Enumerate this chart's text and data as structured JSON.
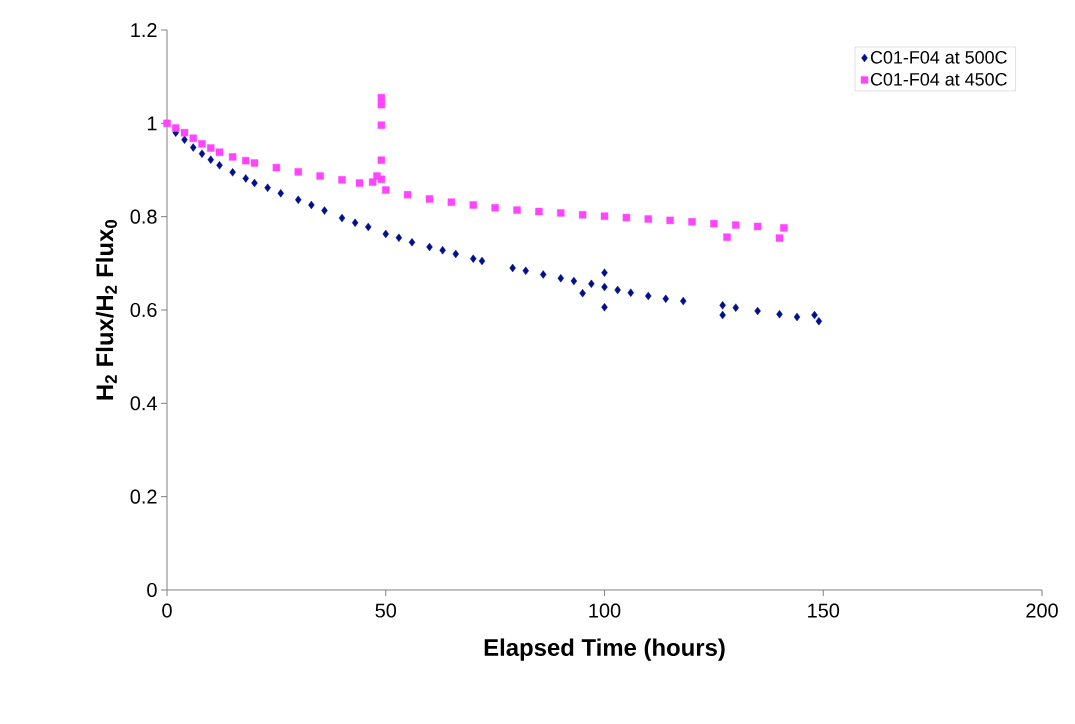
{
  "chart_data": {
    "type": "scatter",
    "xlabel": "Elapsed Time (hours)",
    "ylabel": "H$_{2}$ Flux/H$_{2}$ Flux$_{0}$",
    "xlim": [
      0,
      200
    ],
    "ylim": [
      0,
      1.2
    ],
    "xticks": [
      0,
      50,
      100,
      150,
      200
    ],
    "yticks": [
      0,
      {
        "value": 0.2,
        "label": "0.2"
      },
      {
        "value": 0.4,
        "label": "0.4"
      },
      {
        "value": 0.6,
        "label": "0.6"
      },
      {
        "value": 0.8,
        "label": "0.8"
      },
      1,
      {
        "value": 1.2,
        "label": "1.2"
      }
    ],
    "grid": false,
    "legend": "top right",
    "series": [
      {
        "name": "C01-F04 at 500C",
        "color": "#000f8c",
        "marker": "diamond",
        "x": [
          2,
          4,
          6,
          8,
          10,
          12,
          15,
          18,
          20,
          23,
          26,
          30,
          33,
          36,
          40,
          43,
          46,
          50,
          53,
          56,
          60,
          63,
          66,
          70,
          72,
          79,
          82,
          86,
          90,
          93,
          95,
          97,
          100,
          100,
          100,
          103,
          106,
          110,
          114,
          118,
          127,
          127,
          130,
          135,
          140,
          144,
          148,
          149
        ],
        "values": [
          0.98,
          0.965,
          0.948,
          0.935,
          0.922,
          0.91,
          0.895,
          0.882,
          0.872,
          0.862,
          0.85,
          0.836,
          0.825,
          0.813,
          0.797,
          0.787,
          0.778,
          0.763,
          0.755,
          0.745,
          0.735,
          0.728,
          0.72,
          0.71,
          0.705,
          0.69,
          0.684,
          0.676,
          0.668,
          0.662,
          0.636,
          0.656,
          0.649,
          0.68,
          0.606,
          0.643,
          0.637,
          0.63,
          0.624,
          0.619,
          0.61,
          0.589,
          0.605,
          0.598,
          0.591,
          0.585,
          0.589,
          0.576
        ]
      },
      {
        "name": "C01-F04 at 450C",
        "color": "#ff44ff",
        "marker": "square",
        "x": [
          0,
          2,
          4,
          6,
          8,
          10,
          12,
          15,
          18,
          20,
          25,
          30,
          35,
          40,
          44,
          47,
          48,
          49,
          49,
          49,
          49,
          49,
          50,
          55,
          60,
          65,
          70,
          75,
          80,
          85,
          90,
          95,
          100,
          105,
          110,
          115,
          120,
          125,
          128,
          130,
          135,
          140,
          141
        ],
        "values": [
          1.0,
          0.99,
          0.98,
          0.968,
          0.956,
          0.947,
          0.938,
          0.928,
          0.92,
          0.915,
          0.905,
          0.896,
          0.887,
          0.879,
          0.872,
          0.874,
          0.887,
          0.921,
          0.996,
          1.04,
          1.055,
          0.88,
          0.857,
          0.847,
          0.838,
          0.831,
          0.825,
          0.819,
          0.814,
          0.811,
          0.808,
          0.804,
          0.801,
          0.798,
          0.795,
          0.792,
          0.789,
          0.785,
          0.756,
          0.782,
          0.779,
          0.754,
          0.776
        ]
      }
    ]
  }
}
